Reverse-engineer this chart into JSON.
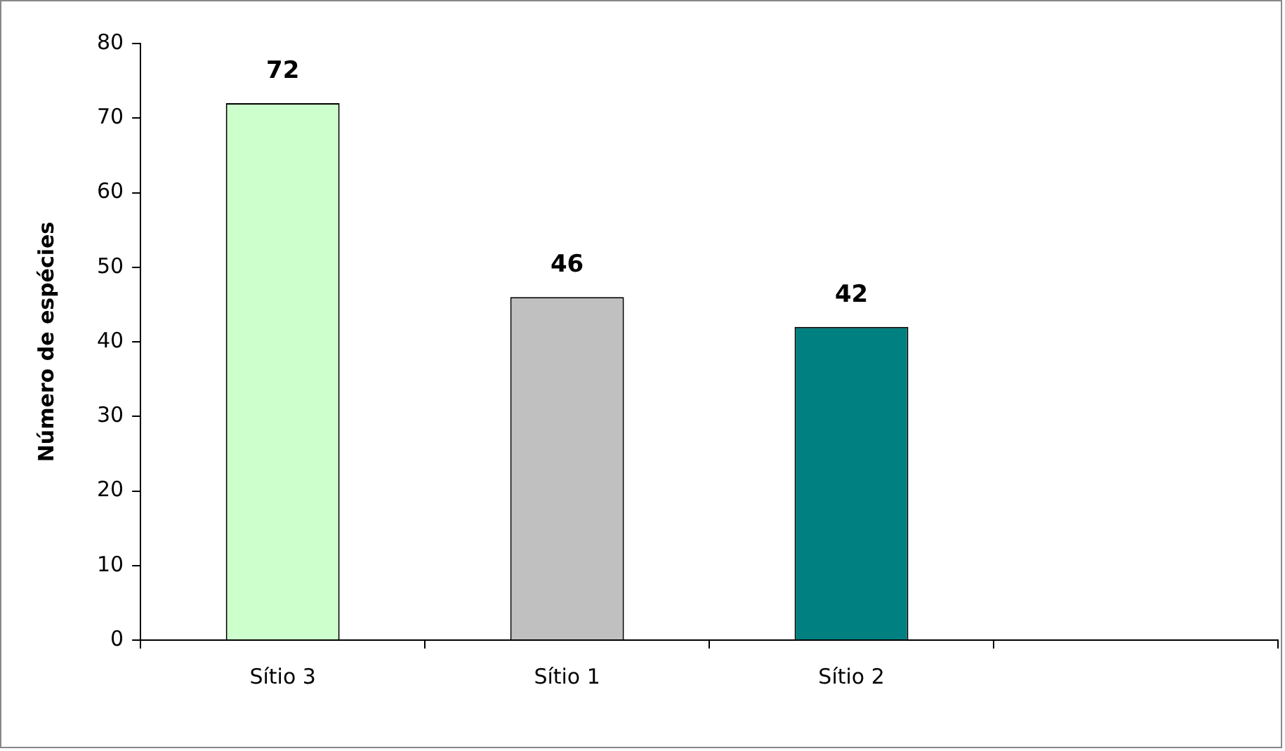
{
  "chart_data": {
    "type": "bar",
    "ylabel": "Número de espécies",
    "categories": [
      "Sítio 3",
      "Sítio 1",
      "Sítio 2",
      null
    ],
    "values": [
      72,
      46,
      42,
      null
    ],
    "colors": [
      "#ccffcc",
      "#c0c0c0",
      "#008080",
      "#ffffff"
    ],
    "ylim": [
      0,
      80
    ],
    "yticks": [
      0,
      10,
      20,
      30,
      40,
      50,
      60,
      70,
      80
    ],
    "grid": false,
    "legend": false,
    "data_labels": true
  }
}
